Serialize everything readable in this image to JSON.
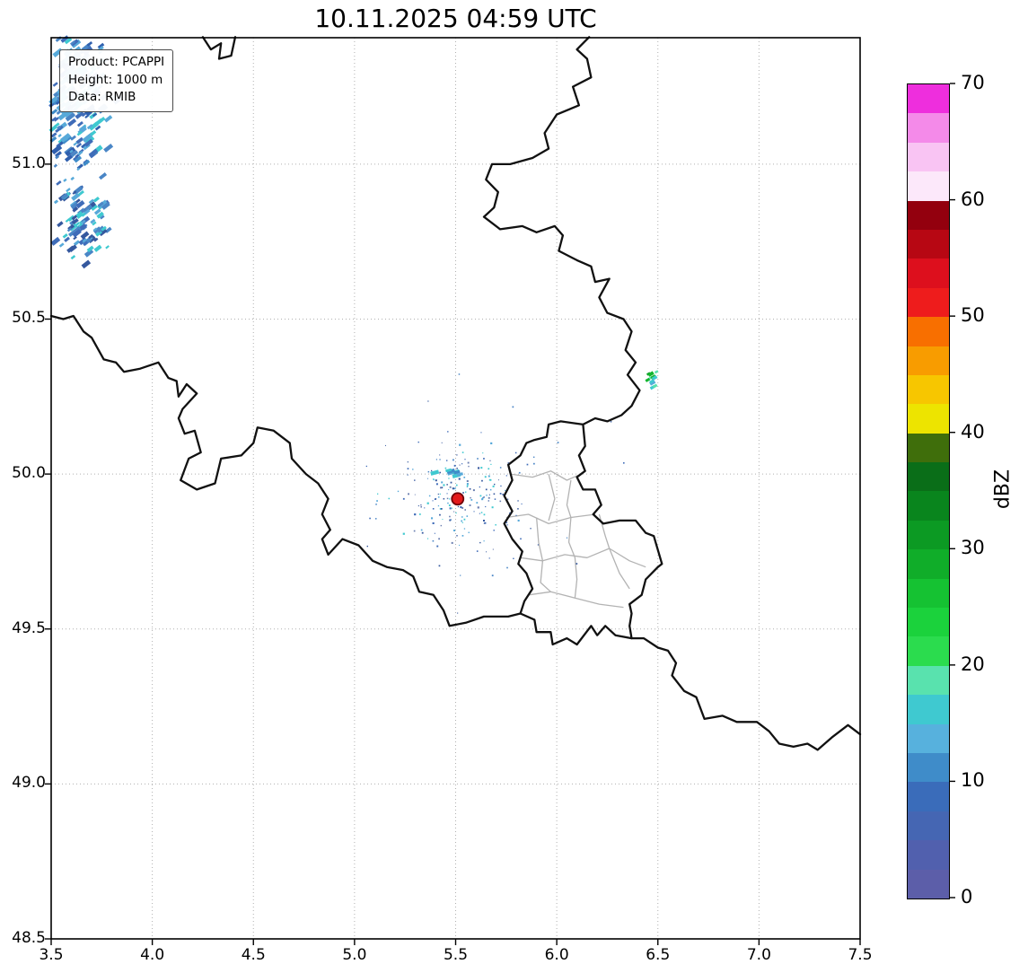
{
  "title": "10.11.2025 04:59 UTC",
  "info_box": {
    "lines": [
      "Product: PCAPPI",
      "Height: 1000 m",
      "Data: RMIB"
    ]
  },
  "chart_data": {
    "type": "heatmap",
    "subtype": "weather-radar-reflectivity-map",
    "title": "10.11.2025 04:59 UTC",
    "grid": true,
    "x_axis": {
      "label": "",
      "range": [
        3.5,
        7.5
      ],
      "ticks": [
        3.5,
        4.0,
        4.5,
        5.0,
        5.5,
        6.0,
        6.5,
        7.0,
        7.5
      ],
      "tick_labels": [
        "3.5",
        "4.0",
        "4.5",
        "5.0",
        "5.5",
        "6.0",
        "6.5",
        "7.0",
        "7.5"
      ]
    },
    "y_axis": {
      "label": "",
      "range": [
        48.5,
        51.408
      ],
      "ticks": [
        48.5,
        49.0,
        49.5,
        50.0,
        50.5,
        51.0
      ],
      "tick_labels": [
        "48.5",
        "49.0",
        "49.5",
        "50.0",
        "50.5",
        "51.0"
      ]
    },
    "colorbar": {
      "label": "dBZ",
      "range": [
        0,
        70
      ],
      "ticks": [
        0,
        10,
        20,
        30,
        40,
        50,
        60,
        70
      ],
      "tick_labels": [
        "0",
        "10",
        "20",
        "30",
        "40",
        "50",
        "60",
        "70"
      ],
      "band_colors_bottom_to_top": [
        "#5c5ea9",
        "#5160ae",
        "#4566b3",
        "#3a6cba",
        "#3f8cc9",
        "#57b1dd",
        "#3fc9d0",
        "#59e2ae",
        "#2bdc4e",
        "#1bd23c",
        "#15c232",
        "#10ad29",
        "#0c9a23",
        "#09851d",
        "#0a6e18",
        "#3f6e0b",
        "#ede400",
        "#f7c600",
        "#f89c00",
        "#f86f00",
        "#ee1c1c",
        "#dd0f1d",
        "#b70713",
        "#93000e",
        "#fce8fa",
        "#f9c4f3",
        "#f48ae9",
        "#ee2edd"
      ]
    },
    "radar_site": {
      "lon": 5.51,
      "lat": 49.92,
      "color": "#e31a1c",
      "edge": "#6e0008",
      "radius_px": 6.5
    },
    "echo_clusters": [
      {
        "name": "precip-nw-main",
        "seed": 11,
        "center": [
          3.62,
          51.23
        ],
        "sd": [
          0.085,
          0.14
        ],
        "count": 260,
        "size": [
          2,
          5
        ],
        "angle": -38,
        "elongate": 2.3,
        "colors": [
          "#3f6cb8",
          "#4a86c6",
          "#57a9d9",
          "#3f8cc9",
          "#3fc9d0",
          "#2f5fae",
          "#57a9d9"
        ]
      },
      {
        "name": "precip-nw-secondary",
        "seed": 7,
        "center": [
          3.66,
          50.8
        ],
        "sd": [
          0.06,
          0.05
        ],
        "count": 85,
        "size": [
          2,
          5
        ],
        "angle": -38,
        "elongate": 2.0,
        "colors": [
          "#3f6cb8",
          "#4a86c6",
          "#57a9d9",
          "#3fc9d0",
          "#35589e"
        ]
      },
      {
        "name": "precip-nw-stray",
        "seed": 3,
        "center": [
          3.55,
          51.02
        ],
        "sd": [
          0.05,
          0.07
        ],
        "count": 14,
        "size": [
          2,
          3
        ],
        "angle": -38,
        "elongate": 1.5,
        "colors": [
          "#4a86c6",
          "#57a9d9"
        ]
      },
      {
        "name": "clutter-ring",
        "seed": 21,
        "center": [
          5.51,
          49.925
        ],
        "sd": [
          0.15,
          0.085
        ],
        "count": 170,
        "size": [
          1,
          2.2
        ],
        "angle": 0,
        "elongate": 1,
        "colors": [
          "#35589e",
          "#3f6cb8",
          "#57a9d9",
          "#6b7fb0",
          "#3fc9d0"
        ]
      },
      {
        "name": "clutter-outer",
        "seed": 33,
        "center": [
          5.51,
          49.91
        ],
        "sd": [
          0.3,
          0.17
        ],
        "count": 55,
        "size": [
          1,
          1.8
        ],
        "angle": 0,
        "elongate": 1,
        "colors": [
          "#35589e",
          "#3f6cb8",
          "#4a86c6"
        ]
      },
      {
        "name": "clutter-streaks",
        "seed": 5,
        "center": [
          5.46,
          50.01
        ],
        "sd": [
          0.05,
          0.015
        ],
        "count": 8,
        "size": [
          2.5,
          4.5
        ],
        "angle": -15,
        "elongate": 2.2,
        "colors": [
          "#3fc9d0",
          "#57a9d9",
          "#3f8cc9"
        ]
      },
      {
        "name": "echo-east",
        "seed": 9,
        "center": [
          6.465,
          50.3
        ],
        "sd": [
          0.018,
          0.016
        ],
        "count": 12,
        "size": [
          2,
          4
        ],
        "angle": -30,
        "elongate": 1.6,
        "colors": [
          "#12b52e",
          "#3fc9d0",
          "#57a9d9",
          "#59e2ae",
          "#0e9e27"
        ]
      }
    ],
    "borders": {
      "country_color": "#111111",
      "district_color": "#b3b3b3",
      "country": [
        [
          [
            3.5,
            50.51
          ],
          [
            3.56,
            50.5
          ],
          [
            3.61,
            50.51
          ],
          [
            3.66,
            50.46
          ],
          [
            3.7,
            50.44
          ],
          [
            3.76,
            50.37
          ],
          [
            3.82,
            50.36
          ],
          [
            3.86,
            50.33
          ],
          [
            3.94,
            50.34
          ],
          [
            4.03,
            50.36
          ],
          [
            4.08,
            50.31
          ],
          [
            4.12,
            50.3
          ],
          [
            4.13,
            50.25
          ],
          [
            4.17,
            50.29
          ],
          [
            4.22,
            50.26
          ],
          [
            4.15,
            50.21
          ],
          [
            4.13,
            50.18
          ],
          [
            4.16,
            50.13
          ],
          [
            4.21,
            50.14
          ],
          [
            4.24,
            50.07
          ],
          [
            4.18,
            50.05
          ],
          [
            4.14,
            49.98
          ],
          [
            4.22,
            49.95
          ],
          [
            4.31,
            49.97
          ],
          [
            4.34,
            50.05
          ],
          [
            4.44,
            50.06
          ],
          [
            4.5,
            50.1
          ],
          [
            4.52,
            50.15
          ],
          [
            4.6,
            50.14
          ],
          [
            4.68,
            50.1
          ],
          [
            4.69,
            50.05
          ],
          [
            4.76,
            50.0
          ],
          [
            4.82,
            49.97
          ],
          [
            4.87,
            49.92
          ],
          [
            4.84,
            49.87
          ],
          [
            4.88,
            49.82
          ],
          [
            4.84,
            49.79
          ],
          [
            4.87,
            49.74
          ],
          [
            4.94,
            49.79
          ],
          [
            5.02,
            49.77
          ],
          [
            5.09,
            49.72
          ],
          [
            5.16,
            49.7
          ],
          [
            5.24,
            49.69
          ],
          [
            5.29,
            49.67
          ],
          [
            5.32,
            49.62
          ],
          [
            5.39,
            49.61
          ],
          [
            5.44,
            49.56
          ],
          [
            5.47,
            49.51
          ],
          [
            5.55,
            49.52
          ],
          [
            5.64,
            49.54
          ],
          [
            5.76,
            49.54
          ],
          [
            5.82,
            49.55
          ]
        ],
        [
          [
            6.37,
            49.47
          ],
          [
            6.43,
            49.47
          ],
          [
            6.5,
            49.44
          ],
          [
            6.55,
            49.43
          ],
          [
            6.59,
            49.39
          ],
          [
            6.57,
            49.35
          ],
          [
            6.63,
            49.3
          ],
          [
            6.69,
            49.28
          ],
          [
            6.73,
            49.21
          ],
          [
            6.82,
            49.22
          ],
          [
            6.89,
            49.2
          ],
          [
            6.99,
            49.2
          ],
          [
            7.05,
            49.17
          ],
          [
            7.1,
            49.13
          ],
          [
            7.17,
            49.12
          ],
          [
            7.24,
            49.13
          ],
          [
            7.29,
            49.11
          ],
          [
            7.36,
            49.15
          ],
          [
            7.44,
            49.19
          ],
          [
            7.5,
            49.16
          ]
        ],
        [
          [
            6.16,
            51.41
          ],
          [
            6.1,
            51.37
          ],
          [
            6.15,
            51.34
          ],
          [
            6.17,
            51.28
          ],
          [
            6.08,
            51.25
          ],
          [
            6.11,
            51.19
          ],
          [
            6.0,
            51.16
          ],
          [
            5.94,
            51.1
          ],
          [
            5.96,
            51.05
          ],
          [
            5.88,
            51.02
          ],
          [
            5.77,
            51.0
          ],
          [
            5.68,
            51.0
          ],
          [
            5.65,
            50.95
          ],
          [
            5.71,
            50.91
          ],
          [
            5.69,
            50.86
          ],
          [
            5.64,
            50.83
          ],
          [
            5.72,
            50.79
          ],
          [
            5.83,
            50.8
          ],
          [
            5.9,
            50.78
          ],
          [
            5.99,
            50.8
          ],
          [
            6.03,
            50.77
          ],
          [
            6.01,
            50.72
          ],
          [
            6.1,
            50.69
          ],
          [
            6.17,
            50.67
          ],
          [
            6.19,
            50.62
          ],
          [
            6.26,
            50.63
          ],
          [
            6.21,
            50.57
          ],
          [
            6.25,
            50.52
          ],
          [
            6.33,
            50.5
          ],
          [
            6.37,
            50.46
          ],
          [
            6.34,
            50.4
          ],
          [
            6.39,
            50.36
          ],
          [
            6.35,
            50.32
          ],
          [
            6.41,
            50.27
          ],
          [
            6.37,
            50.22
          ],
          [
            6.32,
            50.19
          ],
          [
            6.25,
            50.17
          ],
          [
            6.19,
            50.18
          ],
          [
            6.13,
            50.16
          ]
        ],
        [
          [
            4.25,
            51.41
          ],
          [
            4.29,
            51.37
          ],
          [
            4.34,
            51.39
          ],
          [
            4.33,
            51.34
          ],
          [
            4.39,
            51.35
          ],
          [
            4.41,
            51.41
          ]
        ],
        [
          [
            6.13,
            50.16
          ],
          [
            6.02,
            50.17
          ],
          [
            5.96,
            50.16
          ],
          [
            5.95,
            50.12
          ],
          [
            5.89,
            50.11
          ],
          [
            5.85,
            50.1
          ],
          [
            5.82,
            50.06
          ],
          [
            5.76,
            50.03
          ],
          [
            5.78,
            49.98
          ],
          [
            5.74,
            49.93
          ],
          [
            5.78,
            49.88
          ],
          [
            5.74,
            49.84
          ],
          [
            5.78,
            49.79
          ],
          [
            5.83,
            49.75
          ],
          [
            5.81,
            49.71
          ],
          [
            5.85,
            49.68
          ],
          [
            5.88,
            49.63
          ],
          [
            5.84,
            49.59
          ],
          [
            5.82,
            49.55
          ],
          [
            5.89,
            49.53
          ],
          [
            5.9,
            49.49
          ],
          [
            5.97,
            49.49
          ],
          [
            5.98,
            49.45
          ],
          [
            6.05,
            49.47
          ],
          [
            6.1,
            49.45
          ],
          [
            6.17,
            49.51
          ],
          [
            6.2,
            49.48
          ],
          [
            6.24,
            49.51
          ],
          [
            6.29,
            49.48
          ],
          [
            6.37,
            49.47
          ],
          [
            6.36,
            49.51
          ],
          [
            6.37,
            49.55
          ],
          [
            6.36,
            49.58
          ],
          [
            6.42,
            49.61
          ],
          [
            6.44,
            49.66
          ],
          [
            6.5,
            49.7
          ],
          [
            6.52,
            49.71
          ],
          [
            6.48,
            49.8
          ],
          [
            6.44,
            49.81
          ],
          [
            6.39,
            49.85
          ],
          [
            6.31,
            49.85
          ],
          [
            6.23,
            49.84
          ],
          [
            6.18,
            49.87
          ],
          [
            6.22,
            49.9
          ],
          [
            6.19,
            49.95
          ],
          [
            6.13,
            49.95
          ],
          [
            6.1,
            49.99
          ],
          [
            6.14,
            50.01
          ],
          [
            6.11,
            50.06
          ],
          [
            6.14,
            50.09
          ],
          [
            6.13,
            50.16
          ]
        ]
      ],
      "districts": [
        [
          [
            5.77,
            50.0
          ],
          [
            5.88,
            49.99
          ],
          [
            5.97,
            50.01
          ],
          [
            6.05,
            49.98
          ],
          [
            6.12,
            50.0
          ]
        ],
        [
          [
            5.75,
            49.86
          ],
          [
            5.86,
            49.87
          ],
          [
            5.96,
            49.84
          ],
          [
            6.07,
            49.86
          ],
          [
            6.19,
            49.87
          ]
        ],
        [
          [
            5.82,
            49.73
          ],
          [
            5.93,
            49.72
          ],
          [
            6.04,
            49.74
          ],
          [
            6.15,
            49.73
          ],
          [
            6.26,
            49.76
          ],
          [
            6.36,
            49.72
          ],
          [
            6.44,
            49.7
          ]
        ],
        [
          [
            5.86,
            49.61
          ],
          [
            5.97,
            49.62
          ],
          [
            6.09,
            49.6
          ],
          [
            6.21,
            49.58
          ],
          [
            6.33,
            49.57
          ]
        ],
        [
          [
            5.96,
            50.0
          ],
          [
            5.99,
            49.92
          ],
          [
            5.96,
            49.85
          ]
        ],
        [
          [
            6.07,
            49.98
          ],
          [
            6.05,
            49.9
          ],
          [
            6.07,
            49.86
          ],
          [
            6.06,
            49.78
          ],
          [
            6.09,
            49.73
          ],
          [
            6.1,
            49.66
          ],
          [
            6.09,
            49.6
          ]
        ],
        [
          [
            6.21,
            49.87
          ],
          [
            6.24,
            49.8
          ],
          [
            6.26,
            49.76
          ]
        ],
        [
          [
            5.9,
            49.86
          ],
          [
            5.91,
            49.78
          ],
          [
            5.93,
            49.72
          ],
          [
            5.92,
            49.65
          ],
          [
            5.97,
            49.62
          ]
        ],
        [
          [
            6.26,
            49.76
          ],
          [
            6.31,
            49.68
          ],
          [
            6.36,
            49.63
          ]
        ]
      ]
    }
  }
}
